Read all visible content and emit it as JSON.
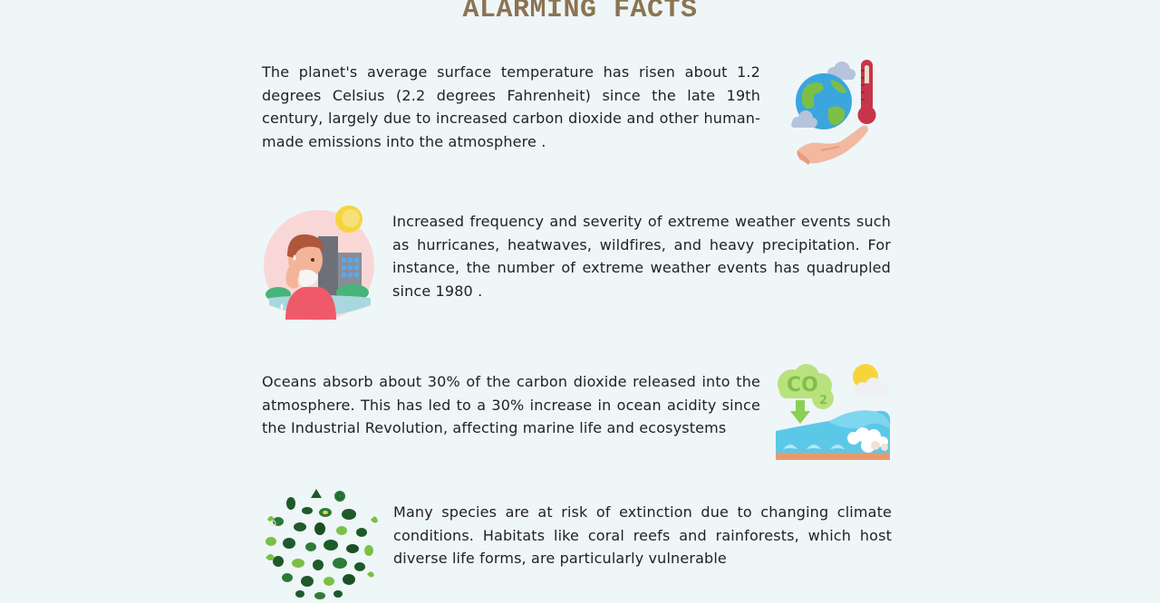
{
  "page": {
    "title": "ALARMING FACTS"
  },
  "facts": [
    {
      "text": "The planet's average surface temperature has risen about 1.2 degrees Celsius (2.2 degrees Fahrenheit) since the late 19th century, largely due to increased carbon dioxide and other human-made emissions into the atmosphere .",
      "icon": "earth-thermometer-hand-icon"
    },
    {
      "text": "Increased frequency and severity of extreme weather events such as hurricanes, heatwaves, wildfires, and heavy precipitation. For instance, the number of extreme weather events has quadrupled since 1980 .",
      "icon": "heatwave-person-icon"
    },
    {
      "text": "Oceans absorb about 30% of the carbon dioxide released into the atmosphere. This has led to a 30% increase in ocean acidity since the Industrial Revolution, affecting marine life and ecosystems",
      "icon": "co2-ocean-icon",
      "icon_label": "CO",
      "icon_sub": "2"
    },
    {
      "text": "Many species are at risk of extinction due to changing climate conditions. Habitats like coral reefs and rainforests, which host diverse life forms, are particularly vulnerable",
      "icon": "biodiversity-circle-icon"
    }
  ],
  "colors": {
    "background": "#eef6f8",
    "title": "#8c7450",
    "text": "#222222"
  }
}
